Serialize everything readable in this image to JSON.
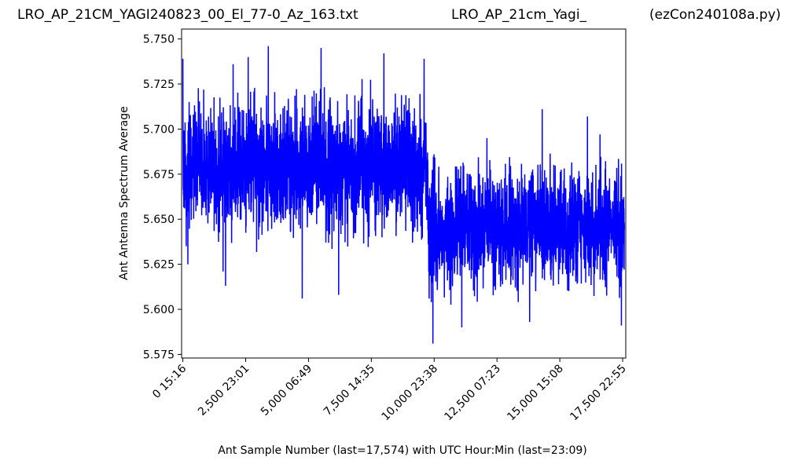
{
  "header": {
    "left": "LRO_AP_21CM_YAGI240823_00_El_77-0_Az_163.txt",
    "center": "LRO_AP_21cm_Yagi_",
    "right": "(ezCon240108a.py)"
  },
  "chart_data": {
    "type": "line",
    "title": "",
    "xlabel": "Ant Sample Number (last=17,574) with UTC Hour:Min (last=23:09)",
    "ylabel": "Ant Antenna Spectrum Average",
    "xlim": [
      -50,
      17624
    ],
    "ylim": [
      5.573,
      5.7555
    ],
    "yticks": [
      5.575,
      5.6,
      5.625,
      5.65,
      5.675,
      5.7,
      5.725,
      5.75
    ],
    "ytick_labels": [
      "5.575",
      "5.600",
      "5.625",
      "5.650",
      "5.675",
      "5.700",
      "5.725",
      "5.750"
    ],
    "xticks": [
      0,
      2500,
      5000,
      7500,
      10000,
      12500,
      15000,
      17500
    ],
    "xtick_labels": [
      "0  15:16",
      "2,500  23:01",
      "5,000  06:49",
      "7,500  14:35",
      "10,000  23:38",
      "12,500  07:23",
      "15,000  15:08",
      "17,500  22:55"
    ],
    "series": [
      {
        "color": "#0000ff",
        "segments": [
          {
            "x_start": 0,
            "x_end": 9750,
            "mean": 5.6795,
            "spread": 0.0165,
            "min": 5.606,
            "max": 5.746
          },
          {
            "x_start": 9750,
            "x_end": 17574,
            "mean": 5.6455,
            "spread": 0.0155,
            "min": 5.581,
            "max": 5.711
          }
        ],
        "points_approx": [
          {
            "x": 0,
            "y": 5.739
          },
          {
            "x": 200,
            "y": 5.625
          },
          {
            "x": 1600,
            "y": 5.621
          },
          {
            "x": 1700,
            "y": 5.613
          },
          {
            "x": 2000,
            "y": 5.736
          },
          {
            "x": 2600,
            "y": 5.74
          },
          {
            "x": 3400,
            "y": 5.746
          },
          {
            "x": 4750,
            "y": 5.606
          },
          {
            "x": 5500,
            "y": 5.745
          },
          {
            "x": 6200,
            "y": 5.608
          },
          {
            "x": 8000,
            "y": 5.742
          },
          {
            "x": 9600,
            "y": 5.739
          },
          {
            "x": 9800,
            "y": 5.606
          },
          {
            "x": 9850,
            "y": 5.64
          },
          {
            "x": 9950,
            "y": 5.581
          },
          {
            "x": 11100,
            "y": 5.59
          },
          {
            "x": 12100,
            "y": 5.695
          },
          {
            "x": 13800,
            "y": 5.593
          },
          {
            "x": 14300,
            "y": 5.711
          },
          {
            "x": 16100,
            "y": 5.707
          },
          {
            "x": 16600,
            "y": 5.697
          },
          {
            "x": 17450,
            "y": 5.591
          },
          {
            "x": 17574,
            "y": 5.64
          }
        ]
      }
    ]
  }
}
